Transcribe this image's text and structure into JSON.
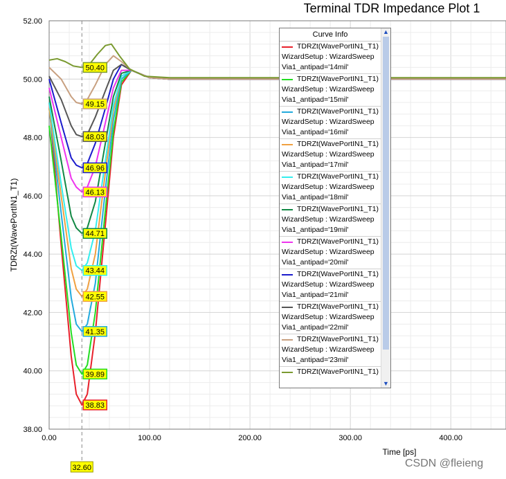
{
  "chart_data": {
    "type": "line",
    "title": "Terminal TDR Impedance Plot 1",
    "xlabel": "Time [ps]",
    "ylabel": "TDRZt(WavePortIN1_T1)",
    "xlim": [
      0,
      455
    ],
    "ylim": [
      38,
      52
    ],
    "x_ticks": [
      "0.00",
      "100.00",
      "200.00",
      "300.00",
      "400.00"
    ],
    "y_ticks": [
      "38.00",
      "40.00",
      "42.00",
      "44.00",
      "46.00",
      "48.00",
      "50.00",
      "52.00"
    ],
    "grid": true,
    "marker_x": "32.60",
    "series": [
      {
        "name": "TDRZt(WavePortIN1_T1)",
        "setup": "WizardSetup : WizardSweep",
        "variant": "Via1_antipad='14mil'",
        "color": "#e8202a",
        "min": 38.83,
        "min_label": "38.83",
        "x": [
          0,
          12,
          22,
          27,
          32.6,
          38,
          46,
          56,
          64,
          72,
          82,
          100,
          120,
          455
        ],
        "y": [
          49.2,
          44.3,
          40.5,
          39.2,
          38.83,
          39.2,
          41.3,
          45.0,
          48.0,
          49.8,
          50.3,
          50.05,
          50.0,
          50.0
        ]
      },
      {
        "name": "TDRZt(WavePortIN1_T1)",
        "setup": "WizardSetup : WizardSweep",
        "variant": "Via1_antipad='15mil'",
        "color": "#22dd22",
        "min": 39.89,
        "min_label": "39.89",
        "x": [
          0,
          12,
          22,
          27,
          32.6,
          38,
          46,
          56,
          64,
          72,
          82,
          100,
          120,
          455
        ],
        "y": [
          48.4,
          44.6,
          41.3,
          40.2,
          39.89,
          40.2,
          42.0,
          45.5,
          48.2,
          49.9,
          50.3,
          50.05,
          50.0,
          50.0
        ]
      },
      {
        "name": "TDRZt(WavePortIN1_T1)",
        "setup": "WizardSetup : WizardSweep",
        "variant": "Via1_antipad='16mil'",
        "color": "#22aadd",
        "min": 41.35,
        "min_label": "41.35",
        "x": [
          0,
          12,
          22,
          27,
          32.6,
          38,
          46,
          56,
          64,
          72,
          82,
          100,
          120,
          455
        ],
        "y": [
          49.0,
          45.4,
          42.5,
          41.6,
          41.35,
          41.6,
          43.0,
          46.2,
          48.6,
          50.0,
          50.3,
          50.05,
          50.0,
          50.0
        ]
      },
      {
        "name": "TDRZt(WavePortIN1_T1)",
        "setup": "WizardSetup : WizardSweep",
        "variant": "Via1_antipad='17mil'",
        "color": "#f0a040",
        "min": 42.55,
        "min_label": "42.55",
        "x": [
          0,
          12,
          22,
          27,
          32.6,
          38,
          46,
          56,
          64,
          72,
          82,
          100,
          120,
          455
        ],
        "y": [
          49.0,
          46.0,
          43.5,
          42.8,
          42.55,
          42.8,
          44.0,
          46.8,
          48.9,
          50.1,
          50.3,
          50.05,
          50.0,
          50.0
        ]
      },
      {
        "name": "TDRZt(WavePortIN1_T1)",
        "setup": "WizardSetup : WizardSweep",
        "variant": "Via1_antipad='18mil'",
        "color": "#33eeee",
        "min": 43.44,
        "min_label": "43.44",
        "x": [
          0,
          12,
          22,
          27,
          32.6,
          38,
          46,
          56,
          64,
          72,
          82,
          100,
          120,
          455
        ],
        "y": [
          49.2,
          46.4,
          44.2,
          43.6,
          43.44,
          43.7,
          44.8,
          47.2,
          49.1,
          50.1,
          50.3,
          50.05,
          50.0,
          50.0
        ]
      },
      {
        "name": "TDRZt(WavePortIN1_T1)",
        "setup": "WizardSetup : WizardSweep",
        "variant": "Via1_antipad='19mil'",
        "color": "#118844",
        "min": 44.71,
        "min_label": "44.71",
        "x": [
          0,
          12,
          22,
          27,
          32.6,
          38,
          46,
          56,
          64,
          72,
          82,
          100,
          120,
          455
        ],
        "y": [
          49.4,
          47.2,
          45.3,
          44.9,
          44.71,
          44.9,
          45.8,
          47.8,
          49.4,
          50.2,
          50.3,
          50.05,
          50.0,
          50.0
        ]
      },
      {
        "name": "TDRZt(WavePortIN1_T1)",
        "setup": "WizardSetup : WizardSweep",
        "variant": "Via1_antipad='20mil'",
        "color": "#ee33ee",
        "min": 46.13,
        "min_label": "46.13",
        "x": [
          0,
          12,
          22,
          27,
          32.6,
          38,
          46,
          56,
          64,
          72,
          82,
          100,
          120,
          455
        ],
        "y": [
          49.7,
          48.0,
          46.6,
          46.3,
          46.13,
          46.3,
          47.0,
          48.5,
          49.7,
          50.3,
          50.3,
          50.05,
          50.0,
          50.0
        ]
      },
      {
        "name": "TDRZt(WavePortIN1_T1)",
        "setup": "WizardSetup : WizardSweep",
        "variant": "Via1_antipad='21mil'",
        "color": "#1a1acc",
        "min": 46.96,
        "min_label": "46.96",
        "x": [
          0,
          12,
          22,
          27,
          32.6,
          38,
          46,
          56,
          64,
          72,
          82,
          100,
          120,
          455
        ],
        "y": [
          50.0,
          48.5,
          47.3,
          47.05,
          46.96,
          47.1,
          47.8,
          49.0,
          50.0,
          50.5,
          50.3,
          50.05,
          50.0,
          50.0
        ]
      },
      {
        "name": "TDRZt(WavePortIN1_T1)",
        "setup": "WizardSetup : WizardSweep",
        "variant": "Via1_antipad='22mil'",
        "color": "#555555",
        "min": 48.03,
        "min_label": "48.03",
        "x": [
          0,
          12,
          22,
          27,
          32.6,
          38,
          46,
          56,
          64,
          72,
          82,
          100,
          120,
          455
        ],
        "y": [
          50.1,
          49.3,
          48.4,
          48.1,
          48.03,
          48.1,
          48.7,
          49.6,
          50.3,
          50.5,
          50.3,
          50.05,
          50.0,
          50.0
        ]
      },
      {
        "name": "TDRZt(WavePortIN1_T1)",
        "setup": "WizardSetup : WizardSweep",
        "variant": "Via1_antipad='23mil'",
        "color": "#c8a080",
        "min": 49.15,
        "min_label": "49.15",
        "x": [
          0,
          12,
          22,
          27,
          32.6,
          38,
          46,
          56,
          64,
          72,
          82,
          100,
          120,
          455
        ],
        "y": [
          50.4,
          50.0,
          49.4,
          49.2,
          49.15,
          49.3,
          49.8,
          50.5,
          50.8,
          50.6,
          50.3,
          50.05,
          50.0,
          50.0
        ]
      },
      {
        "name": "TDRZt(WavePortIN1_T1)",
        "setup": "",
        "variant": "",
        "color": "#7a9a30",
        "min": 50.4,
        "min_label": "50.40",
        "x": [
          0,
          8,
          16,
          24,
          32.6,
          40,
          48,
          56,
          62,
          70,
          80,
          95,
          120,
          455
        ],
        "y": [
          50.65,
          50.7,
          50.6,
          50.45,
          50.4,
          50.5,
          50.85,
          51.15,
          51.2,
          50.8,
          50.35,
          50.1,
          50.05,
          50.05
        ]
      }
    ]
  },
  "legend": {
    "header": "Curve Info",
    "up_arrow": "▲",
    "down_arrow": "▼"
  },
  "watermark": "CSDN @fleieng"
}
